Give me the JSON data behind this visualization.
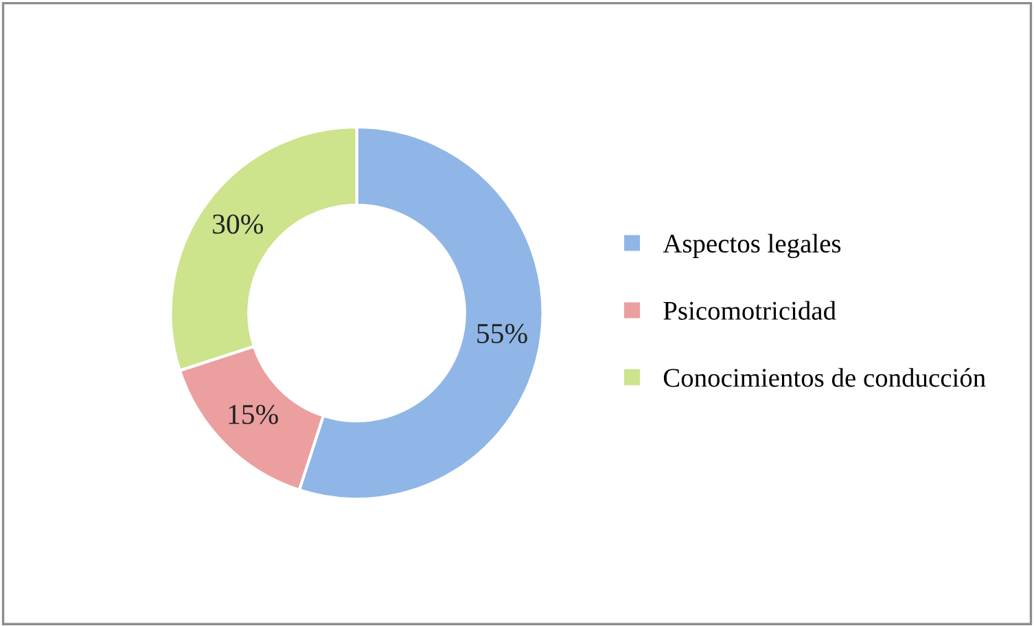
{
  "chart_data": {
    "type": "donut",
    "categories": [
      "Aspectos legales",
      "Psicomotricidad",
      "Conocimientos de conducción"
    ],
    "values": [
      55,
      15,
      30
    ],
    "colors": [
      "#8fb6e6",
      "#eb9f9f",
      "#cde38c"
    ],
    "value_labels": [
      "55%",
      "15%",
      "30%"
    ],
    "legend": "right"
  }
}
